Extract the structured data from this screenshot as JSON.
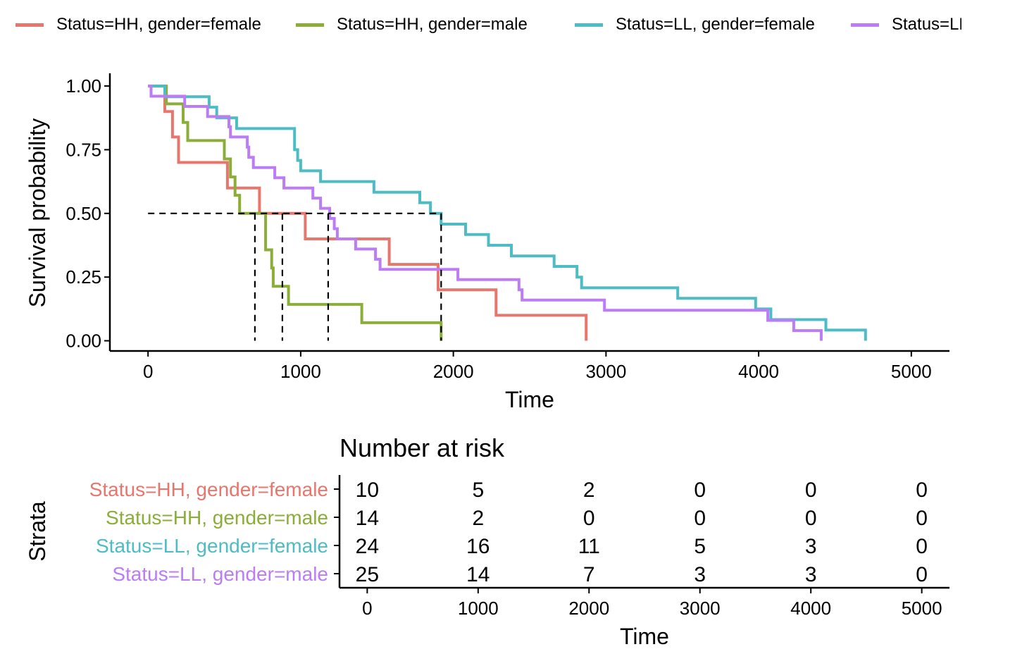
{
  "colors": {
    "HH_female": "#E7766D",
    "HH_male": "#8AAE38",
    "LL_female": "#4DBCC4",
    "LL_male": "#BB7CF5"
  },
  "legend": [
    {
      "label": "Status=HH, gender=female",
      "color": "#E7766D"
    },
    {
      "label": "Status=HH, gender=male",
      "color": "#8AAE38"
    },
    {
      "label": "Status=LL, gender=female",
      "color": "#4DBCC4"
    },
    {
      "label": "Status=LL, gender=male",
      "color": "#BB7CF5"
    }
  ],
  "chart_data": [
    {
      "type": "line",
      "subtype": "step",
      "xlabel": "Time",
      "ylabel": "Survival probability",
      "xlim": [
        -250,
        5250
      ],
      "ylim": [
        -0.04,
        1.05
      ],
      "xticks": [
        0,
        1000,
        2000,
        3000,
        4000,
        5000
      ],
      "xtick_labels": [
        "0",
        "1000",
        "2000",
        "3000",
        "4000",
        "5000"
      ],
      "yticks": [
        0,
        0.25,
        0.5,
        0.75,
        1.0
      ],
      "ytick_labels": [
        "0.00",
        "0.25",
        "0.50",
        "0.75",
        "1.00"
      ],
      "grid": false,
      "legend_position": "top",
      "median_line": {
        "y": 0.5,
        "x_end": 1920,
        "medians": [
          700,
          880,
          1180,
          1920
        ]
      },
      "series": [
        {
          "name": "Status=HH, gender=female",
          "color": "#E7766D",
          "points": [
            [
              0,
              1.0
            ],
            [
              80,
              1.0
            ],
            [
              110,
              0.9
            ],
            [
              160,
              0.8
            ],
            [
              200,
              0.7
            ],
            [
              500,
              0.7
            ],
            [
              520,
              0.6
            ],
            [
              730,
              0.6
            ],
            [
              730,
              0.5
            ],
            [
              1030,
              0.5
            ],
            [
              1030,
              0.4
            ],
            [
              1580,
              0.4
            ],
            [
              1580,
              0.3
            ],
            [
              1900,
              0.3
            ],
            [
              1900,
              0.2
            ],
            [
              2280,
              0.2
            ],
            [
              2280,
              0.1
            ],
            [
              2870,
              0.1
            ],
            [
              2870,
              0.0
            ]
          ]
        },
        {
          "name": "Status=HH, gender=male",
          "color": "#8AAE38",
          "points": [
            [
              0,
              1.0
            ],
            [
              120,
              1.0
            ],
            [
              120,
              0.93
            ],
            [
              230,
              0.93
            ],
            [
              230,
              0.857
            ],
            [
              260,
              0.857
            ],
            [
              260,
              0.786
            ],
            [
              500,
              0.786
            ],
            [
              500,
              0.714
            ],
            [
              540,
              0.714
            ],
            [
              540,
              0.643
            ],
            [
              570,
              0.643
            ],
            [
              570,
              0.571
            ],
            [
              600,
              0.571
            ],
            [
              600,
              0.5
            ],
            [
              770,
              0.5
            ],
            [
              770,
              0.357
            ],
            [
              810,
              0.357
            ],
            [
              810,
              0.286
            ],
            [
              820,
              0.286
            ],
            [
              820,
              0.214
            ],
            [
              920,
              0.214
            ],
            [
              920,
              0.143
            ],
            [
              1400,
              0.143
            ],
            [
              1400,
              0.071
            ],
            [
              1920,
              0.071
            ],
            [
              1920,
              0.0
            ]
          ]
        },
        {
          "name": "Status=LL, gender=female",
          "color": "#4DBCC4",
          "points": [
            [
              0,
              1.0
            ],
            [
              110,
              1.0
            ],
            [
              110,
              0.958
            ],
            [
              400,
              0.958
            ],
            [
              400,
              0.917
            ],
            [
              450,
              0.917
            ],
            [
              450,
              0.875
            ],
            [
              580,
              0.875
            ],
            [
              580,
              0.833
            ],
            [
              960,
              0.833
            ],
            [
              960,
              0.75
            ],
            [
              980,
              0.75
            ],
            [
              980,
              0.708
            ],
            [
              1000,
              0.708
            ],
            [
              1000,
              0.667
            ],
            [
              1130,
              0.667
            ],
            [
              1130,
              0.625
            ],
            [
              1480,
              0.625
            ],
            [
              1480,
              0.583
            ],
            [
              1780,
              0.583
            ],
            [
              1780,
              0.542
            ],
            [
              1850,
              0.542
            ],
            [
              1850,
              0.5
            ],
            [
              1920,
              0.5
            ],
            [
              1920,
              0.458
            ],
            [
              2080,
              0.458
            ],
            [
              2080,
              0.417
            ],
            [
              2230,
              0.417
            ],
            [
              2230,
              0.375
            ],
            [
              2380,
              0.375
            ],
            [
              2380,
              0.333
            ],
            [
              2660,
              0.333
            ],
            [
              2660,
              0.292
            ],
            [
              2810,
              0.292
            ],
            [
              2810,
              0.25
            ],
            [
              2840,
              0.25
            ],
            [
              2840,
              0.208
            ],
            [
              3470,
              0.208
            ],
            [
              3470,
              0.167
            ],
            [
              3980,
              0.167
            ],
            [
              3980,
              0.125
            ],
            [
              4080,
              0.125
            ],
            [
              4080,
              0.083
            ],
            [
              4440,
              0.083
            ],
            [
              4440,
              0.042
            ],
            [
              4700,
              0.042
            ],
            [
              4700,
              0.0
            ]
          ]
        },
        {
          "name": "Status=LL, gender=male",
          "color": "#BB7CF5",
          "points": [
            [
              0,
              1.0
            ],
            [
              20,
              1.0
            ],
            [
              20,
              0.96
            ],
            [
              240,
              0.96
            ],
            [
              240,
              0.92
            ],
            [
              390,
              0.92
            ],
            [
              390,
              0.88
            ],
            [
              530,
              0.88
            ],
            [
              530,
              0.84
            ],
            [
              540,
              0.84
            ],
            [
              540,
              0.8
            ],
            [
              650,
              0.8
            ],
            [
              650,
              0.76
            ],
            [
              660,
              0.76
            ],
            [
              660,
              0.72
            ],
            [
              690,
              0.72
            ],
            [
              690,
              0.68
            ],
            [
              830,
              0.68
            ],
            [
              830,
              0.64
            ],
            [
              890,
              0.64
            ],
            [
              890,
              0.6
            ],
            [
              1080,
              0.6
            ],
            [
              1080,
              0.56
            ],
            [
              1130,
              0.56
            ],
            [
              1130,
              0.52
            ],
            [
              1190,
              0.52
            ],
            [
              1190,
              0.48
            ],
            [
              1220,
              0.48
            ],
            [
              1220,
              0.44
            ],
            [
              1240,
              0.44
            ],
            [
              1240,
              0.4
            ],
            [
              1360,
              0.4
            ],
            [
              1360,
              0.36
            ],
            [
              1490,
              0.36
            ],
            [
              1490,
              0.32
            ],
            [
              1520,
              0.32
            ],
            [
              1520,
              0.28
            ],
            [
              2030,
              0.28
            ],
            [
              2030,
              0.24
            ],
            [
              2430,
              0.24
            ],
            [
              2430,
              0.2
            ],
            [
              2450,
              0.2
            ],
            [
              2450,
              0.16
            ],
            [
              2990,
              0.16
            ],
            [
              2990,
              0.12
            ],
            [
              4060,
              0.12
            ],
            [
              4060,
              0.08
            ],
            [
              4230,
              0.08
            ],
            [
              4230,
              0.04
            ],
            [
              4410,
              0.04
            ],
            [
              4410,
              0.0
            ]
          ]
        }
      ]
    },
    {
      "type": "table",
      "title": "Number at risk",
      "xlabel": "Time",
      "ylabel": "Strata",
      "xlim": [
        -250,
        5250
      ],
      "xticks": [
        0,
        1000,
        2000,
        3000,
        4000,
        5000
      ],
      "xtick_labels": [
        "0",
        "1000",
        "2000",
        "3000",
        "4000",
        "5000"
      ],
      "rows": [
        {
          "name": "Status=HH, gender=female",
          "color": "#E7766D",
          "values": [
            "10",
            "5",
            "2",
            "0",
            "0",
            "0"
          ]
        },
        {
          "name": "Status=HH, gender=male",
          "color": "#8AAE38",
          "values": [
            "14",
            "2",
            "0",
            "0",
            "0",
            "0"
          ]
        },
        {
          "name": "Status=LL, gender=female",
          "color": "#4DBCC4",
          "values": [
            "24",
            "16",
            "11",
            "5",
            "3",
            "0"
          ]
        },
        {
          "name": "Status=LL, gender=male",
          "color": "#BB7CF5",
          "values": [
            "25",
            "14",
            "7",
            "3",
            "3",
            "0"
          ]
        }
      ]
    }
  ]
}
